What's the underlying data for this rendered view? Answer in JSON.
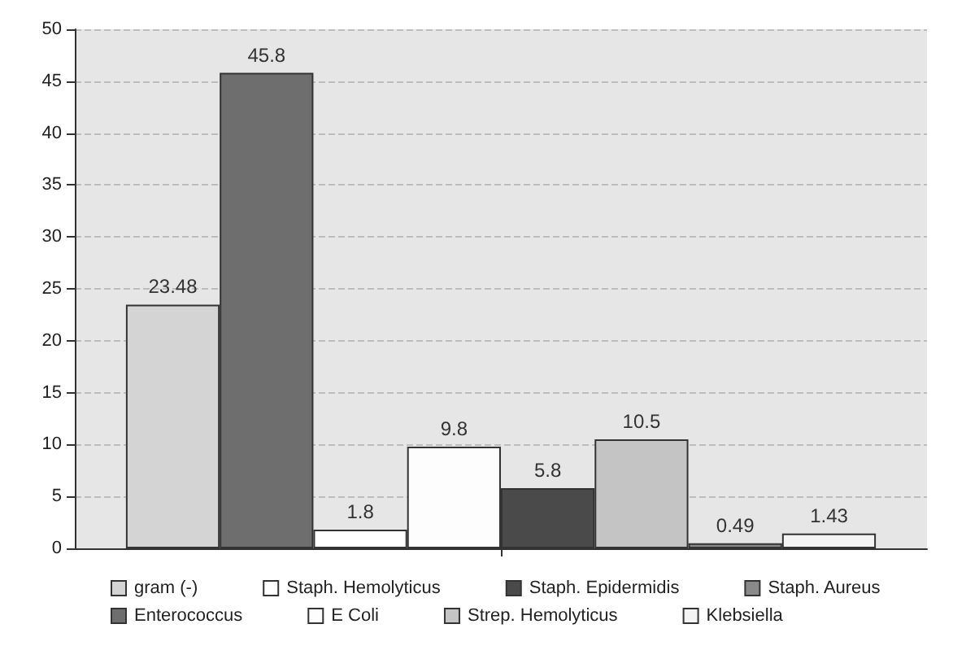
{
  "chart_data": {
    "type": "bar",
    "categories": [
      null
    ],
    "series": [
      {
        "name": "gram (-)",
        "color": "#d4d4d4",
        "values": [
          23.48
        ]
      },
      {
        "name": "Enterococcus",
        "color": "#6e6e6e",
        "values": [
          45.8
        ]
      },
      {
        "name": "Staph. Hemolyticus",
        "color": "#ffffff",
        "values": [
          1.8
        ]
      },
      {
        "name": "E Coli",
        "color": "#fdfdfd",
        "values": [
          9.8
        ]
      },
      {
        "name": "Staph. Epidermidis",
        "color": "#4a4a4a",
        "values": [
          5.8
        ]
      },
      {
        "name": "Strep. Hemolyticus",
        "color": "#c4c4c4",
        "values": [
          10.5
        ]
      },
      {
        "name": "Staph. Aureus",
        "color": "#8a8a8a",
        "values": [
          0.49
        ]
      },
      {
        "name": "Klebsiella",
        "color": "#f4f4f4",
        "values": [
          1.43
        ]
      }
    ],
    "ylim": [
      0,
      50
    ],
    "yticks": [
      0,
      5,
      10,
      15,
      20,
      25,
      30,
      35,
      40,
      45,
      50
    ],
    "grid": "y",
    "legend": "bottom",
    "data_labels": true
  }
}
